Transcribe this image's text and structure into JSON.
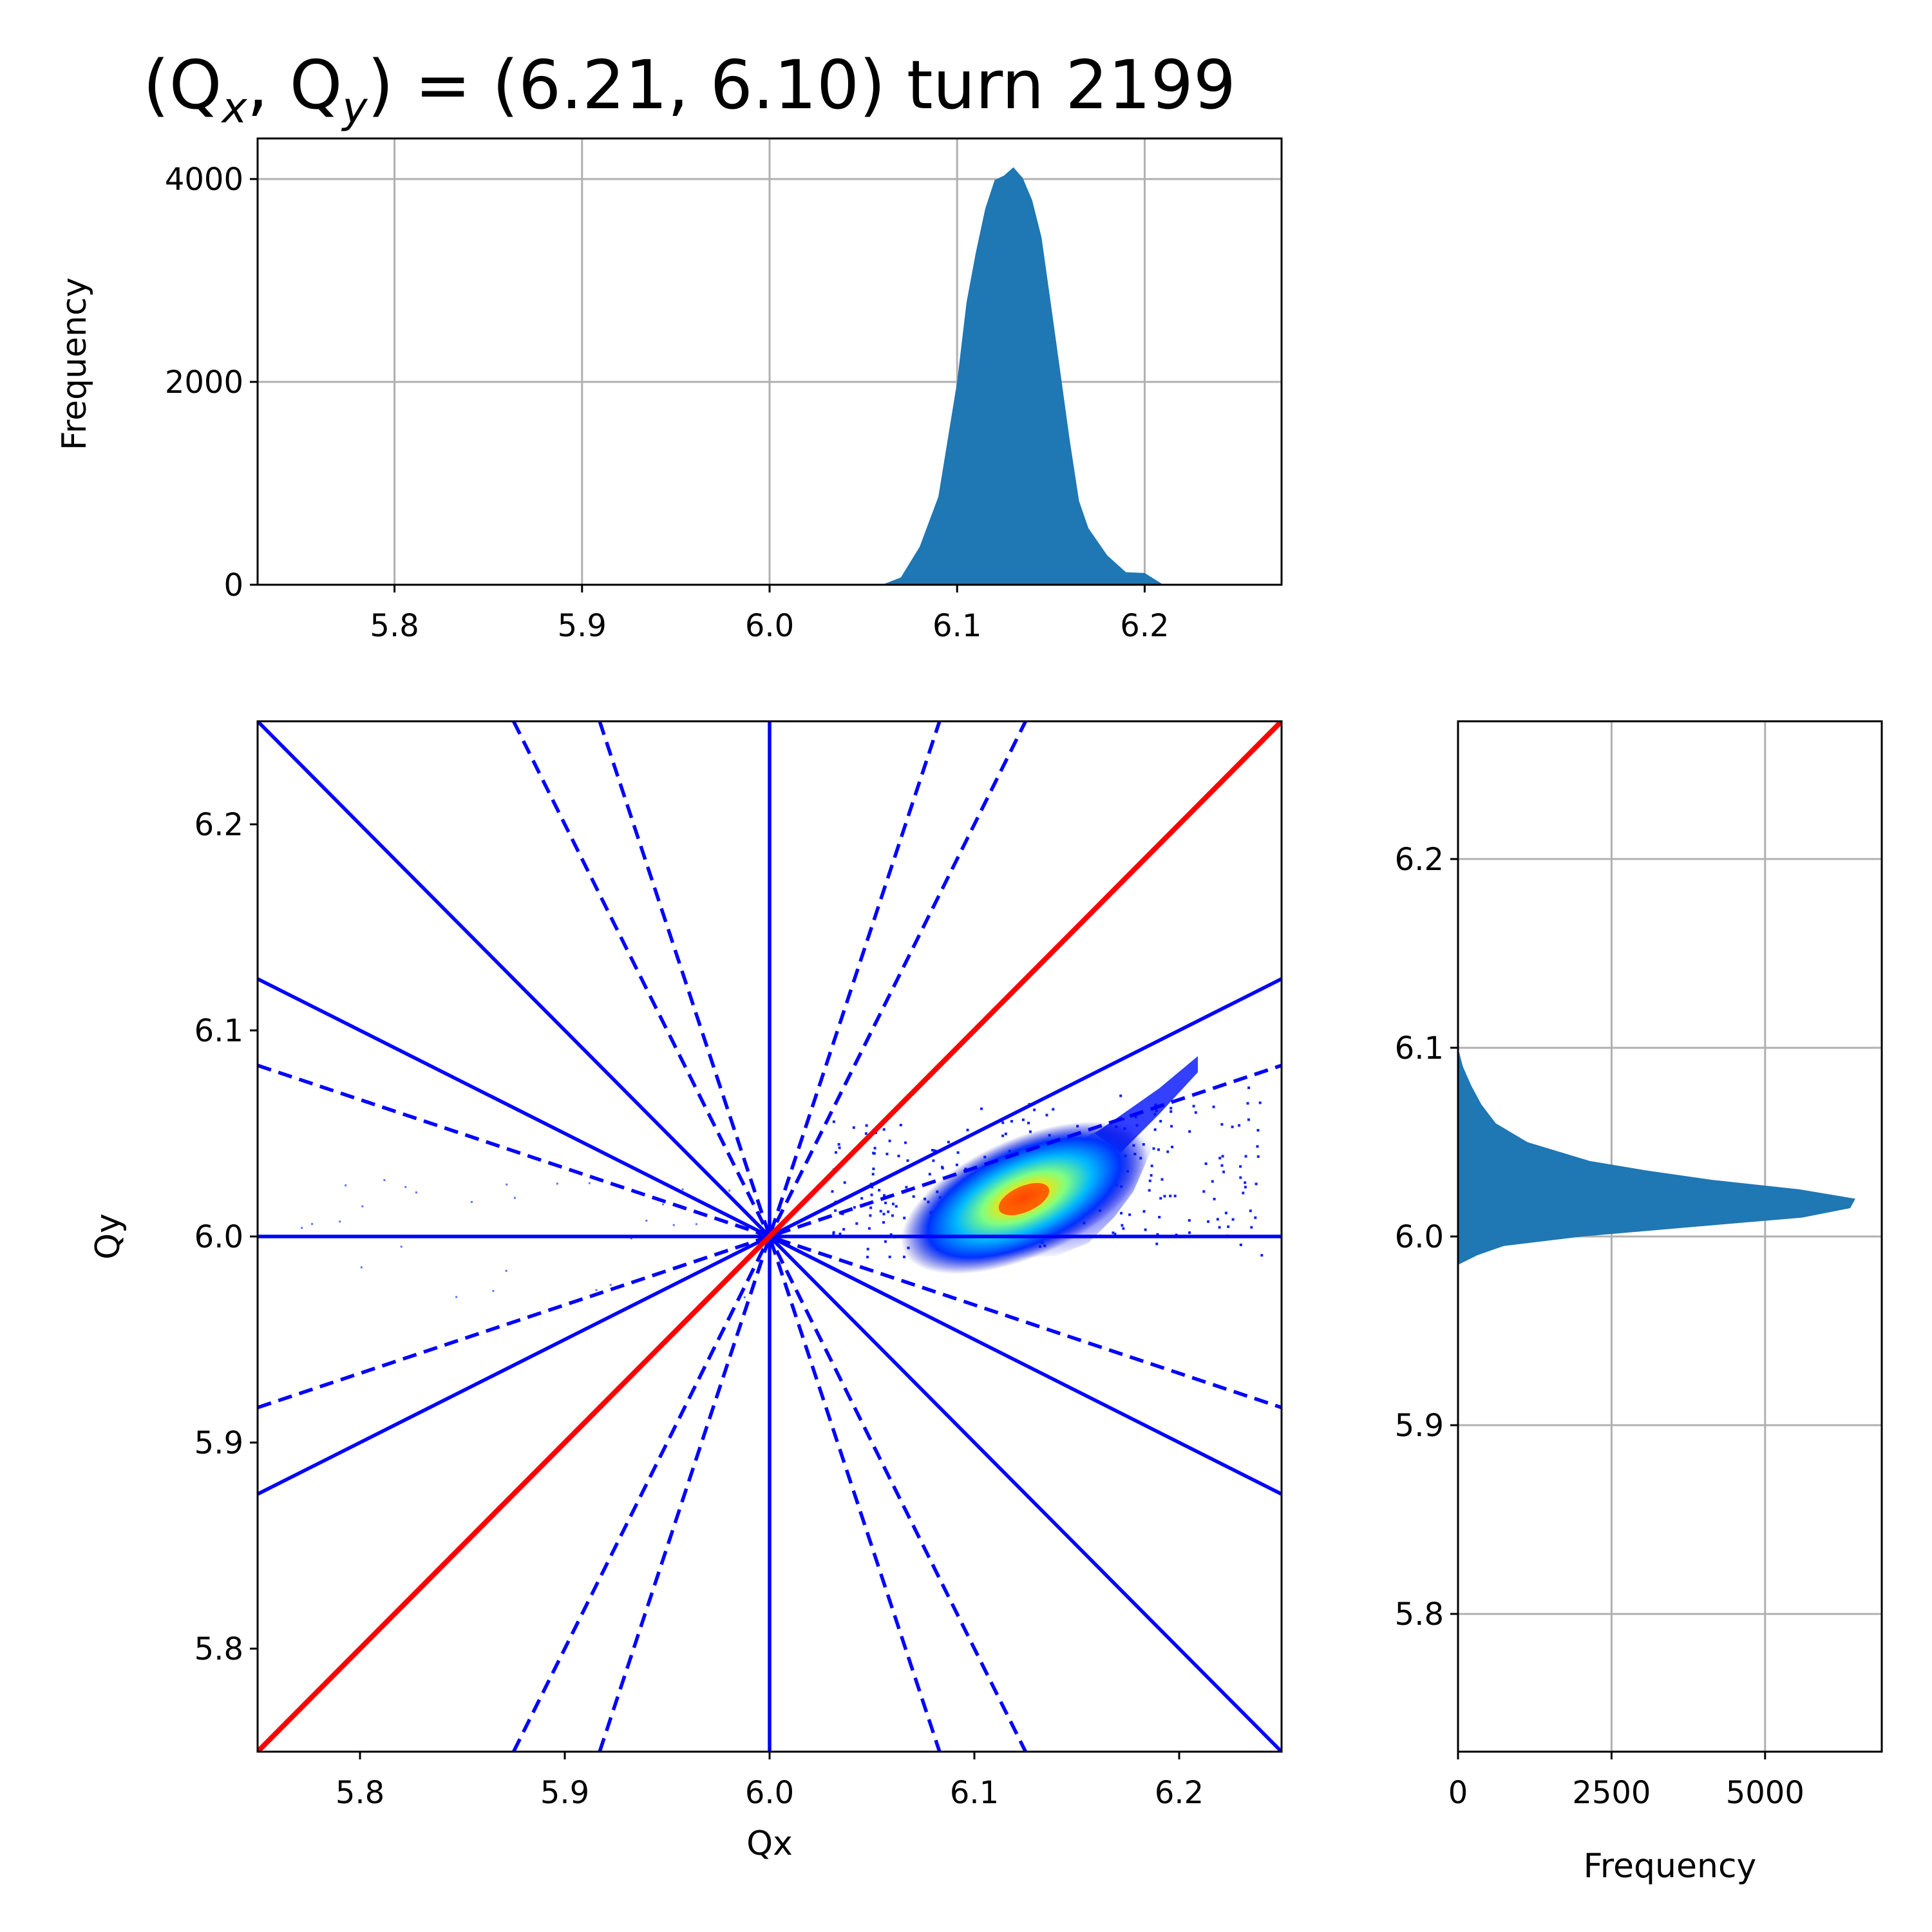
{
  "title": {
    "prefix": "(Q",
    "sub_x": "x",
    "mid": ", Q",
    "sub_y": "y",
    "suffix": ") = (6.21, 6.10) turn 2199"
  },
  "colors": {
    "hist": "#1f77b4",
    "resonance": "#0000ff",
    "diagonal": "#ff0000",
    "grid": "#b0b0b0"
  },
  "chart_data": [
    {
      "id": "top-histogram",
      "type": "bar",
      "title": "",
      "xlabel": "",
      "ylabel": "Frequency",
      "xlim": [
        5.727,
        6.273
      ],
      "ylim": [
        0,
        4400
      ],
      "xticks": [
        "5.8",
        "5.9",
        "6.0",
        "6.1",
        "6.2"
      ],
      "xtick_values": [
        5.8,
        5.9,
        6.0,
        6.1,
        6.2
      ],
      "yticks": [
        "0",
        "2000",
        "4000"
      ],
      "ytick_values": [
        0,
        2000,
        4000
      ],
      "grid": true,
      "profile": {
        "x": [
          6.06,
          6.07,
          6.08,
          6.09,
          6.1,
          6.105,
          6.11,
          6.115,
          6.12,
          6.125,
          6.13,
          6.135,
          6.14,
          6.145,
          6.15,
          6.155,
          6.16,
          6.165,
          6.17,
          6.18,
          6.19,
          6.2,
          6.21
        ],
        "values": [
          0,
          80,
          350,
          900,
          2000,
          2750,
          3300,
          3700,
          3950,
          4050,
          4100,
          4050,
          3800,
          3400,
          2800,
          2100,
          1400,
          850,
          550,
          250,
          140,
          100,
          0
        ]
      }
    },
    {
      "id": "tune-diagram",
      "type": "scatter",
      "title": "",
      "xlabel": "Qx",
      "ylabel": "Qy",
      "xlim": [
        5.75,
        6.25
      ],
      "ylim": [
        5.75,
        6.25
      ],
      "xticks": [
        "5.8",
        "5.9",
        "6.0",
        "6.1",
        "6.2"
      ],
      "xtick_values": [
        5.8,
        5.9,
        6.0,
        6.1,
        6.2
      ],
      "yticks": [
        "5.8",
        "5.9",
        "6.0",
        "6.1",
        "6.2"
      ],
      "ytick_values": [
        5.8,
        5.9,
        6.0,
        6.1,
        6.2
      ],
      "grid": false,
      "resonance_lines": [
        {
          "name": "diagonal",
          "x": [
            5.75,
            6.25
          ],
          "y": [
            5.75,
            6.25
          ],
          "style": "solid",
          "color": "red"
        },
        {
          "name": "vertical-6",
          "x": [
            6.0,
            6.0
          ],
          "y": [
            5.75,
            6.25
          ],
          "style": "solid",
          "color": "blue"
        },
        {
          "name": "horizontal-6",
          "x": [
            5.75,
            6.25
          ],
          "y": [
            6.0,
            6.0
          ],
          "style": "solid",
          "color": "blue"
        },
        {
          "name": "anti-diagonal",
          "x": [
            5.75,
            6.25
          ],
          "y": [
            6.25,
            5.75
          ],
          "style": "solid",
          "color": "blue"
        },
        {
          "name": "slope-0.5-up",
          "x": [
            5.75,
            6.25
          ],
          "y": [
            5.875,
            6.125
          ],
          "style": "solid",
          "color": "blue"
        },
        {
          "name": "slope-0.5-down",
          "x": [
            5.75,
            6.25
          ],
          "y": [
            6.125,
            5.875
          ],
          "style": "solid",
          "color": "blue"
        },
        {
          "name": "slope-0.333-up",
          "x": [
            5.75,
            6.25
          ],
          "y": [
            5.917,
            6.083
          ],
          "style": "dashed",
          "color": "blue"
        },
        {
          "name": "slope-0.333-down",
          "x": [
            5.75,
            6.25
          ],
          "y": [
            6.083,
            5.917
          ],
          "style": "dashed",
          "color": "blue"
        },
        {
          "name": "slope-3-up",
          "x": [
            5.917,
            6.083
          ],
          "y": [
            5.75,
            6.25
          ],
          "style": "dashed",
          "color": "blue"
        },
        {
          "name": "slope-3-down",
          "x": [
            5.917,
            6.083
          ],
          "y": [
            6.25,
            5.75
          ],
          "style": "dashed",
          "color": "blue"
        },
        {
          "name": "slope-2-up",
          "x": [
            5.875,
            6.125
          ],
          "y": [
            5.75,
            6.25
          ],
          "style": "dashed",
          "color": "blue"
        },
        {
          "name": "slope-2-down",
          "x": [
            5.875,
            6.125
          ],
          "y": [
            6.25,
            5.75
          ],
          "style": "dashed",
          "color": "blue"
        }
      ],
      "density_peak": {
        "qx": 6.125,
        "qy": 6.02
      }
    },
    {
      "id": "right-histogram",
      "type": "bar",
      "orientation": "horizontal",
      "title": "",
      "xlabel": "Frequency",
      "ylabel": "",
      "xlim": [
        0,
        6900
      ],
      "ylim": [
        5.727,
        6.273
      ],
      "xticks": [
        "0",
        "2500",
        "5000"
      ],
      "xtick_values": [
        0,
        2500,
        5000
      ],
      "yticks": [
        "5.8",
        "5.9",
        "6.0",
        "6.1",
        "6.2"
      ],
      "ytick_values": [
        5.8,
        5.9,
        6.0,
        6.1,
        6.2
      ],
      "grid": true,
      "profile": {
        "y": [
          5.985,
          5.99,
          5.995,
          6.0,
          6.005,
          6.01,
          6.015,
          6.02,
          6.025,
          6.03,
          6.035,
          6.04,
          6.05,
          6.06,
          6.07,
          6.08,
          6.09,
          6.1
        ],
        "values": [
          0,
          250,
          700,
          2000,
          3800,
          5600,
          6400,
          6500,
          5600,
          4200,
          3000,
          2100,
          1100,
          600,
          380,
          230,
          110,
          0
        ]
      }
    }
  ]
}
